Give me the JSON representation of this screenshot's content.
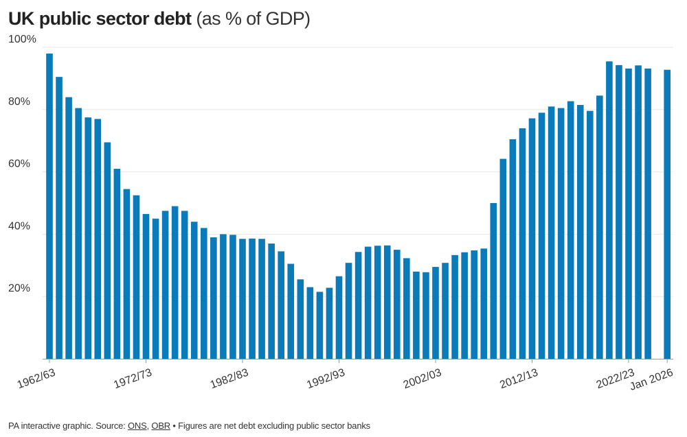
{
  "header": {
    "title_bold": "UK public sector debt",
    "title_light": " (as % of GDP)"
  },
  "footer": {
    "prefix": "PA interactive graphic. Source: ",
    "source_1": "ONS",
    "separator": ", ",
    "source_2": "OBR",
    "note": " • Figures are net debt excluding public sector banks"
  },
  "chart_data": {
    "type": "bar",
    "title": "UK public sector debt (as % of GDP)",
    "xlabel": "",
    "ylabel": "",
    "bar_color": "#0a7ab8",
    "grid": true,
    "ylim": [
      0,
      100
    ],
    "y_ticks": [
      20,
      40,
      60,
      80,
      100
    ],
    "y_tick_labels": [
      "20%",
      "40%",
      "60%",
      "80%",
      "100%"
    ],
    "categories": [
      "1962/63",
      "1963/64",
      "1964/65",
      "1965/66",
      "1966/67",
      "1967/68",
      "1968/69",
      "1969/70",
      "1970/71",
      "1971/72",
      "1972/73",
      "1973/74",
      "1974/75",
      "1975/76",
      "1976/77",
      "1977/78",
      "1978/79",
      "1979/80",
      "1980/81",
      "1981/82",
      "1982/83",
      "1983/84",
      "1984/85",
      "1985/86",
      "1986/87",
      "1987/88",
      "1988/89",
      "1989/90",
      "1990/91",
      "1991/92",
      "1992/93",
      "1993/94",
      "1994/95",
      "1995/96",
      "1996/97",
      "1997/98",
      "1998/99",
      "1999/00",
      "2000/01",
      "2001/02",
      "2002/03",
      "2003/04",
      "2004/05",
      "2005/06",
      "2006/07",
      "2007/08",
      "2008/09",
      "2009/10",
      "2010/11",
      "2011/12",
      "2012/13",
      "2013/14",
      "2014/15",
      "2015/16",
      "2016/17",
      "2017/18",
      "2018/19",
      "2019/20",
      "2020/21",
      "2021/22",
      "2022/23",
      "2023/24",
      "2024/25",
      "",
      "Jan 2026"
    ],
    "values": [
      98,
      90.5,
      84,
      80.5,
      77.5,
      77,
      69.5,
      61,
      54.5,
      52.5,
      46.5,
      45,
      47.5,
      49,
      47.5,
      44,
      42,
      39,
      40,
      39.8,
      38.5,
      38.6,
      38.5,
      37,
      34.5,
      30.5,
      25.5,
      23,
      21.5,
      22.8,
      26.5,
      30.8,
      34.3,
      36,
      36.3,
      36.4,
      35,
      32.3,
      28,
      27.8,
      29.5,
      30.8,
      33.3,
      34.2,
      34.8,
      35.4,
      50,
      64.2,
      70.5,
      74,
      77.2,
      79,
      81,
      80.5,
      82.7,
      81.5,
      79.6,
      84.5,
      95.5,
      94.3,
      93.2,
      94.2,
      93.2,
      null,
      92.8
    ],
    "x_tick_labels": [
      {
        "index": 0,
        "label": "1962/63"
      },
      {
        "index": 10,
        "label": "1972/73"
      },
      {
        "index": 20,
        "label": "1982/83"
      },
      {
        "index": 30,
        "label": "1992/93"
      },
      {
        "index": 40,
        "label": "2002/03"
      },
      {
        "index": 50,
        "label": "2012/13"
      },
      {
        "index": 60,
        "label": "2022/23"
      },
      {
        "index": 64,
        "label": "Jan 2026"
      }
    ]
  }
}
